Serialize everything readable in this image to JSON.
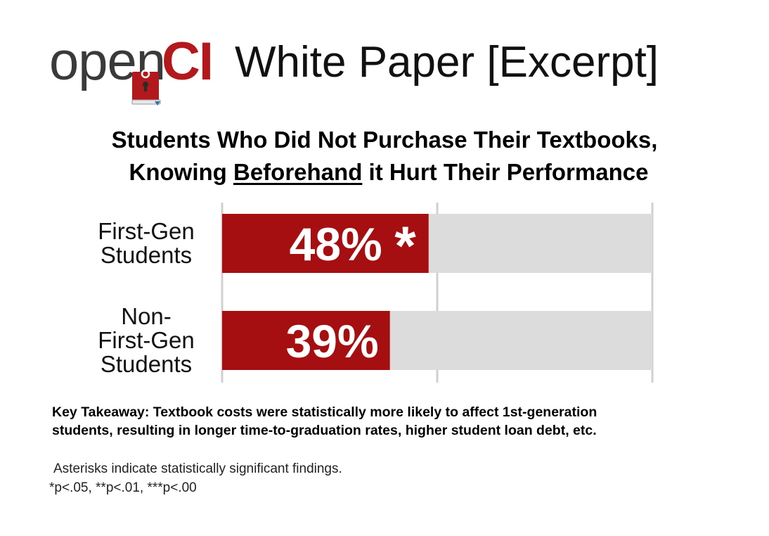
{
  "header": {
    "logo_text_open": "open",
    "logo_text_ci": "CI",
    "title": "White Paper [Excerpt]",
    "brand_color": "#b3191c"
  },
  "chart_data": {
    "type": "bar",
    "orientation": "horizontal",
    "title_parts": {
      "line1": "Students Who Did Not Purchase Their Textbooks,",
      "line2_before": "Knowing ",
      "line2_underlined": "Beforehand",
      "line2_after": " it Hurt Their Performance"
    },
    "categories": [
      [
        "First-Gen",
        "Students"
      ],
      [
        "Non-",
        "First-Gen",
        "Students"
      ]
    ],
    "values": [
      48,
      39
    ],
    "data_labels": [
      "48%",
      "39%"
    ],
    "significance": [
      "*",
      ""
    ],
    "xlim": [
      0,
      100
    ],
    "grid": true,
    "bar_color": "#a50f12",
    "track_color": "#dcdcdc"
  },
  "takeaway": {
    "line1": "Key Takeaway: Textbook costs were statistically more likely to affect 1st-generation",
    "line2": "students, resulting in longer time-to-graduation rates, higher student loan debt, etc."
  },
  "footnote": {
    "line1": "Asterisks indicate statistically significant findings.",
    "line2": "*p<.05, **p<.01, ***p<.00"
  }
}
